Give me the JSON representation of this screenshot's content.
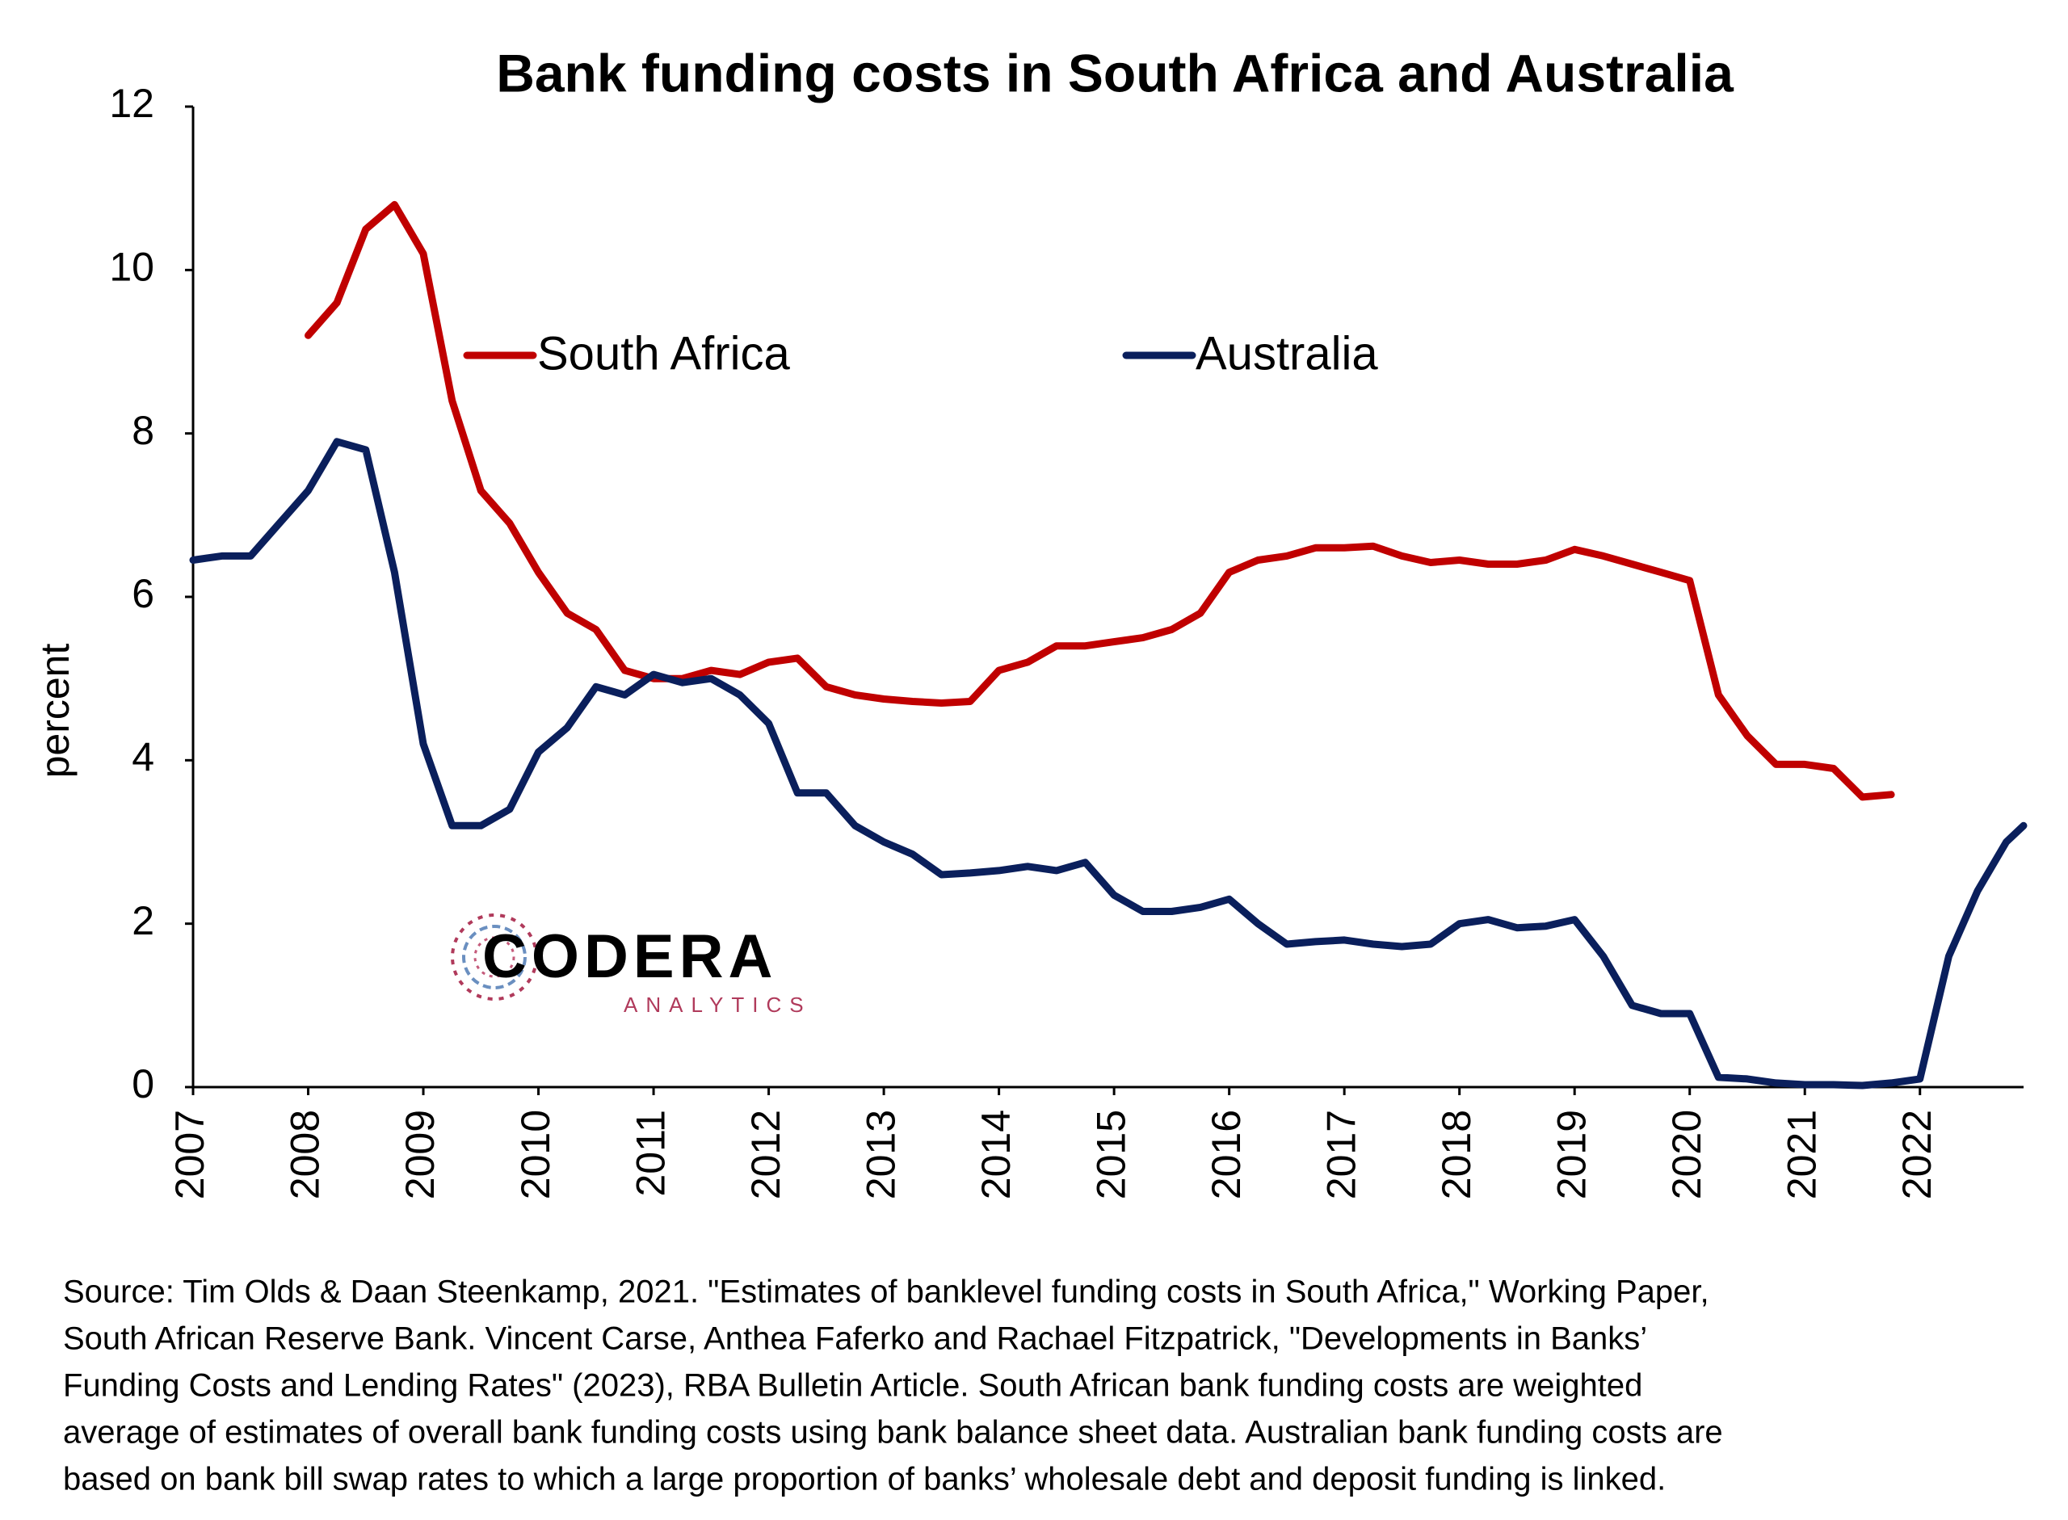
{
  "chart_data": {
    "type": "line",
    "title": "Bank funding costs in South Africa and Australia",
    "ylabel": "percent",
    "x": [
      2007,
      2007.25,
      2007.5,
      2007.75,
      2008,
      2008.25,
      2008.5,
      2008.75,
      2009,
      2009.25,
      2009.5,
      2009.75,
      2010,
      2010.25,
      2010.5,
      2010.75,
      2011,
      2011.25,
      2011.5,
      2011.75,
      2012,
      2012.25,
      2012.5,
      2012.75,
      2013,
      2013.25,
      2013.5,
      2013.75,
      2014,
      2014.25,
      2014.5,
      2014.75,
      2015,
      2015.25,
      2015.5,
      2015.75,
      2016,
      2016.25,
      2016.5,
      2016.75,
      2017,
      2017.25,
      2017.5,
      2017.75,
      2018,
      2018.25,
      2018.5,
      2018.75,
      2019,
      2019.25,
      2019.5,
      2019.75,
      2020,
      2020.25,
      2020.5,
      2020.75,
      2021,
      2021.25,
      2021.5,
      2021.75,
      2022,
      2022.25,
      2022.5,
      2022.75,
      2022.9
    ],
    "series": [
      {
        "name": "South Africa",
        "color": "#c00000",
        "values": [
          null,
          null,
          null,
          null,
          9.2,
          9.6,
          10.5,
          10.8,
          10.2,
          8.4,
          7.3,
          6.9,
          6.3,
          5.8,
          5.6,
          5.1,
          5.0,
          5.0,
          5.1,
          5.05,
          5.2,
          5.25,
          4.9,
          4.8,
          4.75,
          4.72,
          4.7,
          4.72,
          5.1,
          5.2,
          5.4,
          5.4,
          5.45,
          5.5,
          5.6,
          5.8,
          6.3,
          6.45,
          6.5,
          6.6,
          6.6,
          6.62,
          6.5,
          6.42,
          6.45,
          6.4,
          6.4,
          6.45,
          6.58,
          6.5,
          6.4,
          6.3,
          6.2,
          4.8,
          4.3,
          3.95,
          3.95,
          3.9,
          3.55,
          3.58,
          null,
          null,
          null,
          null,
          null
        ]
      },
      {
        "name": "Australia",
        "color": "#0a1f5c",
        "values": [
          6.45,
          6.5,
          6.5,
          6.9,
          7.3,
          7.9,
          7.8,
          6.3,
          4.2,
          3.2,
          3.2,
          3.4,
          4.1,
          4.4,
          4.9,
          4.8,
          5.05,
          4.95,
          5.0,
          4.8,
          4.45,
          3.6,
          3.6,
          3.2,
          3.0,
          2.85,
          2.6,
          2.62,
          2.65,
          2.7,
          2.65,
          2.75,
          2.35,
          2.15,
          2.15,
          2.2,
          2.3,
          2.0,
          1.75,
          1.78,
          1.8,
          1.75,
          1.72,
          1.75,
          2.0,
          2.05,
          1.95,
          1.97,
          2.05,
          1.6,
          1.0,
          0.9,
          0.9,
          0.12,
          0.1,
          0.05,
          0.03,
          0.03,
          0.02,
          0.05,
          0.1,
          1.6,
          2.4,
          3.0,
          3.2
        ]
      }
    ],
    "xlim": [
      2007,
      2022.9
    ],
    "xticks": [
      2007,
      2008,
      2009,
      2010,
      2011,
      2012,
      2013,
      2014,
      2015,
      2016,
      2017,
      2018,
      2019,
      2020,
      2021,
      2022
    ],
    "ylim": [
      0,
      12
    ],
    "yticks": [
      0,
      2,
      4,
      6,
      8,
      10,
      12
    ],
    "grid": false,
    "logo": {
      "name": "CODERA",
      "tagline": "ANALYTICS"
    },
    "note": [
      "Source: Tim Olds & Daan Steenkamp, 2021. \"Estimates of banklevel funding costs in South Africa,\" Working Paper,",
      "South African Reserve Bank. Vincent Carse, Anthea Faferko and Rachael Fitzpatrick, \"Developments in Banks’",
      "Funding Costs and Lending Rates\" (2023), RBA Bulletin Article. South African bank funding costs are weighted",
      "average of estimates of overall bank funding costs using bank balance sheet data. Australian bank funding costs are",
      "based on bank bill swap rates to which a large proportion of banks’ wholesale debt and deposit funding is linked."
    ]
  }
}
